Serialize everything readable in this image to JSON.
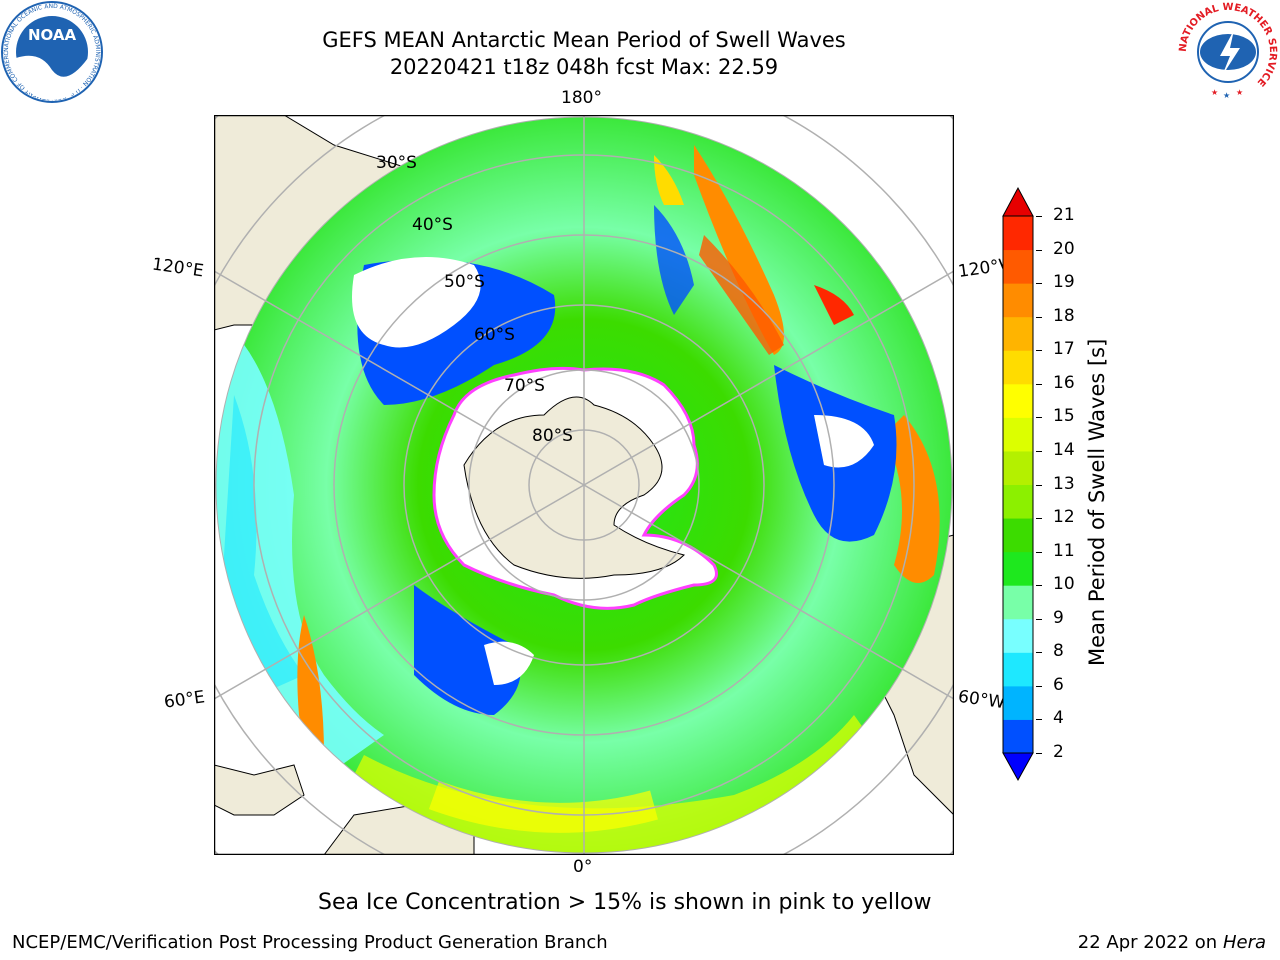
{
  "header": {
    "title_line1": "GEFS MEAN Antarctic Mean Period of Swell Waves",
    "title_line2": "20220421 t18z 048h fcst   Max: 22.59"
  },
  "logos": {
    "left": {
      "text": "NOAA",
      "ring_text": "NATIONAL OCEANIC AND ATMOSPHERIC ADMINISTRATION · U.S. DEPARTMENT OF COMMERCE",
      "icon": "noaa-logo-icon",
      "color": "#1f63b2"
    },
    "right": {
      "ring_text": "NATIONAL WEATHER SERVICE",
      "icon": "nws-logo-icon",
      "color": "#e31b23"
    }
  },
  "map": {
    "projection": "south-polar-stereographic",
    "longitude_labels": {
      "top": "180°",
      "bottom": "0°",
      "upper_left": "120°E",
      "lower_left": "60°E",
      "upper_right": "120°W",
      "lower_right": "60°W"
    },
    "latitude_labels": [
      "30°S",
      "40°S",
      "50°S",
      "60°S",
      "70°S",
      "80°S"
    ],
    "land_color": "#efebd9",
    "ice_edge_color": "#ff40ff"
  },
  "colorbar": {
    "label": "Mean Period of Swell Waves [s]",
    "ticks": [
      "2",
      "4",
      "6",
      "8",
      "9",
      "10",
      "11",
      "12",
      "13",
      "14",
      "15",
      "16",
      "17",
      "18",
      "19",
      "20",
      "21"
    ],
    "colors": [
      "#0050ff",
      "#00b4ff",
      "#1ee8ff",
      "#78ffff",
      "#78ffa8",
      "#1ee81e",
      "#3cdc00",
      "#8cf000",
      "#b4f000",
      "#dcff00",
      "#ffff00",
      "#ffdc00",
      "#ffb400",
      "#ff8c00",
      "#ff5a00",
      "#ff2800"
    ],
    "under_color": "#0000ff",
    "over_color": "#e60000"
  },
  "caption": "Sea Ice Concentration > 15% is shown in pink to yellow",
  "footer": {
    "left": "NCEP/EMC/Verification Post Processing Product Generation Branch",
    "right_date": "22 Apr 2022 on",
    "right_host": "Hera"
  }
}
